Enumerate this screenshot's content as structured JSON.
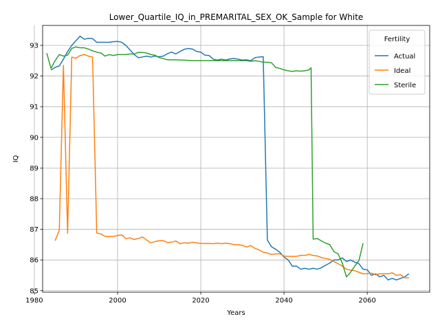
{
  "chart_data": {
    "type": "line",
    "title": "Lower_Quartile_IQ_in_PREMARITAL_SEX_OK_Sample for White",
    "xlabel": "Years",
    "ylabel": "IQ",
    "xlim": [
      1982,
      2075
    ],
    "ylim": [
      84.95,
      93.65
    ],
    "xticks": [
      1980,
      2000,
      2020,
      2040,
      2060
    ],
    "yticks": [
      85,
      86,
      87,
      88,
      89,
      90,
      91,
      92,
      93
    ],
    "grid": true,
    "legend": {
      "title": "Fertility",
      "placement": "top-right"
    },
    "series": [
      {
        "name": "Actual",
        "color": "#1f77b4",
        "points": [
          [
            1984,
            92.2
          ],
          [
            1985,
            92.28
          ],
          [
            1986,
            92.33
          ],
          [
            1987,
            92.55
          ],
          [
            1988,
            92.8
          ],
          [
            1989,
            93.0
          ],
          [
            1990,
            93.15
          ],
          [
            1991,
            93.3
          ],
          [
            1992,
            93.2
          ],
          [
            1993,
            93.23
          ],
          [
            1994,
            93.22
          ],
          [
            1995,
            93.1
          ],
          [
            1996,
            93.1
          ],
          [
            1997,
            93.1
          ],
          [
            1998,
            93.1
          ],
          [
            1999,
            93.12
          ],
          [
            2000,
            93.13
          ],
          [
            2001,
            93.1
          ],
          [
            2002,
            93.0
          ],
          [
            2003,
            92.85
          ],
          [
            2004,
            92.7
          ],
          [
            2005,
            92.6
          ],
          [
            2006,
            92.62
          ],
          [
            2007,
            92.65
          ],
          [
            2008,
            92.62
          ],
          [
            2009,
            92.65
          ],
          [
            2010,
            92.63
          ],
          [
            2011,
            92.65
          ],
          [
            2012,
            92.73
          ],
          [
            2013,
            92.78
          ],
          [
            2014,
            92.72
          ],
          [
            2015,
            92.8
          ],
          [
            2016,
            92.87
          ],
          [
            2017,
            92.9
          ],
          [
            2018,
            92.88
          ],
          [
            2019,
            92.8
          ],
          [
            2020,
            92.78
          ],
          [
            2021,
            92.68
          ],
          [
            2022,
            92.67
          ],
          [
            2023,
            92.55
          ],
          [
            2024,
            92.52
          ],
          [
            2025,
            92.55
          ],
          [
            2026,
            92.52
          ],
          [
            2027,
            92.56
          ],
          [
            2028,
            92.57
          ],
          [
            2029,
            92.55
          ],
          [
            2030,
            92.52
          ],
          [
            2031,
            92.53
          ],
          [
            2032,
            92.5
          ],
          [
            2033,
            92.6
          ],
          [
            2034,
            92.62
          ],
          [
            2035,
            92.63
          ],
          [
            2036,
            86.65
          ],
          [
            2037,
            86.43
          ],
          [
            2038,
            86.35
          ],
          [
            2039,
            86.25
          ],
          [
            2040,
            86.1
          ],
          [
            2041,
            86.0
          ],
          [
            2042,
            85.8
          ],
          [
            2043,
            85.8
          ],
          [
            2044,
            85.7
          ],
          [
            2045,
            85.73
          ],
          [
            2046,
            85.7
          ],
          [
            2047,
            85.73
          ],
          [
            2048,
            85.7
          ],
          [
            2049,
            85.75
          ],
          [
            2050,
            85.83
          ],
          [
            2051,
            85.9
          ],
          [
            2052,
            86.0
          ],
          [
            2053,
            86.0
          ],
          [
            2054,
            86.07
          ],
          [
            2055,
            85.95
          ],
          [
            2056,
            86.0
          ],
          [
            2057,
            85.93
          ],
          [
            2058,
            85.88
          ],
          [
            2059,
            85.7
          ],
          [
            2060,
            85.68
          ],
          [
            2061,
            85.5
          ],
          [
            2062,
            85.55
          ],
          [
            2063,
            85.45
          ],
          [
            2064,
            85.5
          ],
          [
            2065,
            85.35
          ],
          [
            2066,
            85.4
          ],
          [
            2067,
            85.35
          ],
          [
            2068,
            85.4
          ],
          [
            2069,
            85.45
          ],
          [
            2070,
            85.55
          ]
        ]
      },
      {
        "name": "Ideal",
        "color": "#ff7f0e",
        "points": [
          [
            1985,
            86.63
          ],
          [
            1986,
            86.97
          ],
          [
            1987,
            92.35
          ],
          [
            1988,
            86.87
          ],
          [
            1989,
            92.62
          ],
          [
            1990,
            92.58
          ],
          [
            1991,
            92.67
          ],
          [
            1992,
            92.7
          ],
          [
            1993,
            92.65
          ],
          [
            1994,
            92.62
          ],
          [
            1995,
            86.88
          ],
          [
            1996,
            86.85
          ],
          [
            1997,
            86.77
          ],
          [
            1998,
            86.77
          ],
          [
            1999,
            86.77
          ],
          [
            2000,
            86.8
          ],
          [
            2001,
            86.82
          ],
          [
            2002,
            86.7
          ],
          [
            2003,
            86.72
          ],
          [
            2004,
            86.67
          ],
          [
            2005,
            86.7
          ],
          [
            2006,
            86.75
          ],
          [
            2007,
            86.65
          ],
          [
            2008,
            86.56
          ],
          [
            2009,
            86.6
          ],
          [
            2010,
            86.63
          ],
          [
            2011,
            86.63
          ],
          [
            2012,
            86.57
          ],
          [
            2013,
            86.58
          ],
          [
            2014,
            86.62
          ],
          [
            2015,
            86.53
          ],
          [
            2016,
            86.56
          ],
          [
            2017,
            86.55
          ],
          [
            2018,
            86.58
          ],
          [
            2019,
            86.56
          ],
          [
            2020,
            86.54
          ],
          [
            2021,
            86.54
          ],
          [
            2022,
            86.54
          ],
          [
            2023,
            86.53
          ],
          [
            2024,
            86.55
          ],
          [
            2025,
            86.53
          ],
          [
            2026,
            86.55
          ],
          [
            2027,
            86.53
          ],
          [
            2028,
            86.5
          ],
          [
            2029,
            86.5
          ],
          [
            2030,
            86.48
          ],
          [
            2031,
            86.42
          ],
          [
            2032,
            86.47
          ],
          [
            2033,
            86.38
          ],
          [
            2034,
            86.33
          ],
          [
            2035,
            86.25
          ],
          [
            2036,
            86.23
          ],
          [
            2037,
            86.18
          ],
          [
            2038,
            86.2
          ],
          [
            2039,
            86.2
          ],
          [
            2040,
            86.13
          ],
          [
            2041,
            86.12
          ],
          [
            2042,
            86.12
          ],
          [
            2043,
            86.12
          ],
          [
            2044,
            86.15
          ],
          [
            2045,
            86.15
          ],
          [
            2046,
            86.18
          ],
          [
            2047,
            86.15
          ],
          [
            2048,
            86.13
          ],
          [
            2049,
            86.08
          ],
          [
            2050,
            86.05
          ],
          [
            2051,
            86.02
          ],
          [
            2052,
            85.95
          ],
          [
            2053,
            85.88
          ],
          [
            2054,
            85.8
          ],
          [
            2055,
            85.7
          ],
          [
            2056,
            85.67
          ],
          [
            2057,
            85.65
          ],
          [
            2058,
            85.6
          ],
          [
            2059,
            85.55
          ],
          [
            2060,
            85.55
          ],
          [
            2061,
            85.57
          ],
          [
            2062,
            85.52
          ],
          [
            2063,
            85.55
          ],
          [
            2064,
            85.55
          ],
          [
            2065,
            85.55
          ],
          [
            2066,
            85.58
          ],
          [
            2067,
            85.5
          ],
          [
            2068,
            85.52
          ],
          [
            2069,
            85.42
          ],
          [
            2070,
            85.42
          ]
        ]
      },
      {
        "name": "Sterile",
        "color": "#2ca02c",
        "points": [
          [
            1983,
            92.75
          ],
          [
            1984,
            92.25
          ],
          [
            1985,
            92.5
          ],
          [
            1986,
            92.7
          ],
          [
            1987,
            92.65
          ],
          [
            1988,
            92.68
          ],
          [
            1989,
            92.9
          ],
          [
            1990,
            92.95
          ],
          [
            1991,
            92.92
          ],
          [
            1992,
            92.92
          ],
          [
            1993,
            92.88
          ],
          [
            1994,
            92.82
          ],
          [
            1995,
            92.78
          ],
          [
            1996,
            92.75
          ],
          [
            1997,
            92.65
          ],
          [
            1998,
            92.7
          ],
          [
            1999,
            92.67
          ],
          [
            2000,
            92.7
          ],
          [
            2001,
            92.7
          ],
          [
            2002,
            92.7
          ],
          [
            2003,
            92.72
          ],
          [
            2004,
            92.72
          ],
          [
            2005,
            92.77
          ],
          [
            2006,
            92.77
          ],
          [
            2007,
            92.75
          ],
          [
            2008,
            92.7
          ],
          [
            2009,
            92.68
          ],
          [
            2010,
            92.6
          ],
          [
            2011,
            92.57
          ],
          [
            2012,
            92.53
          ],
          [
            2013,
            92.53
          ],
          [
            2014,
            92.53
          ],
          [
            2015,
            92.52
          ],
          [
            2016,
            92.52
          ],
          [
            2017,
            92.51
          ],
          [
            2018,
            92.5
          ],
          [
            2019,
            92.5
          ],
          [
            2020,
            92.5
          ],
          [
            2021,
            92.5
          ],
          [
            2022,
            92.5
          ],
          [
            2023,
            92.5
          ],
          [
            2024,
            92.5
          ],
          [
            2025,
            92.5
          ],
          [
            2026,
            92.5
          ],
          [
            2027,
            92.5
          ],
          [
            2028,
            92.5
          ],
          [
            2029,
            92.5
          ],
          [
            2030,
            92.5
          ],
          [
            2031,
            92.5
          ],
          [
            2032,
            92.48
          ],
          [
            2033,
            92.5
          ],
          [
            2034,
            92.48
          ],
          [
            2035,
            92.45
          ],
          [
            2036,
            92.45
          ],
          [
            2037,
            92.43
          ],
          [
            2038,
            92.28
          ],
          [
            2039,
            92.25
          ],
          [
            2040,
            92.2
          ],
          [
            2041,
            92.17
          ],
          [
            2042,
            92.15
          ],
          [
            2043,
            92.17
          ],
          [
            2044,
            92.16
          ],
          [
            2045,
            92.17
          ],
          [
            2046,
            92.2
          ],
          [
            2046.5,
            92.27
          ],
          [
            2047,
            86.68
          ],
          [
            2048,
            86.7
          ],
          [
            2049,
            86.62
          ],
          [
            2050,
            86.55
          ],
          [
            2051,
            86.5
          ],
          [
            2052,
            86.27
          ],
          [
            2053,
            86.2
          ],
          [
            2054,
            85.9
          ],
          [
            2055,
            85.45
          ],
          [
            2056,
            85.6
          ],
          [
            2057,
            85.8
          ],
          [
            2058,
            85.98
          ],
          [
            2059,
            86.55
          ]
        ]
      }
    ]
  }
}
